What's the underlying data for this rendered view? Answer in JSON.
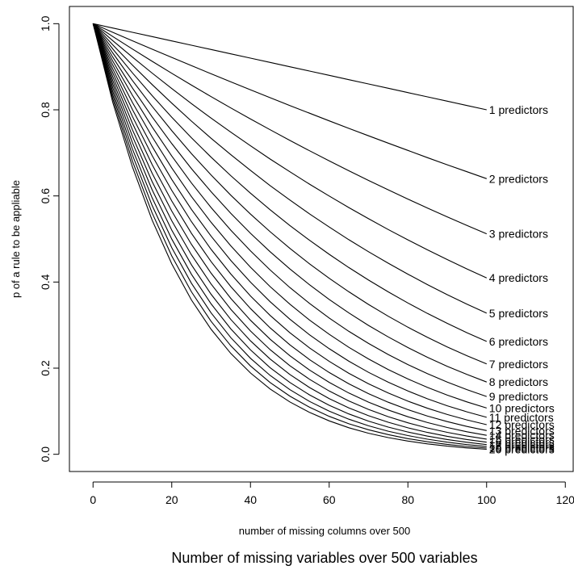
{
  "caption": "Number of missing variables over 500 variables",
  "chart_data": {
    "type": "line",
    "xlabel": "number of missing columns over 500",
    "ylabel": "p of a rule to be appliable",
    "xlim": [
      -6,
      122
    ],
    "ylim": [
      -0.04,
      1.04
    ],
    "xticks": [
      0,
      20,
      40,
      60,
      80,
      100,
      120
    ],
    "yticks": [
      0.0,
      0.2,
      0.4,
      0.6,
      0.8,
      1.0
    ],
    "yticklabels": [
      "0.0",
      "0.2",
      "0.4",
      "0.6",
      "0.8",
      "1.0"
    ],
    "grid": false,
    "legend": "none",
    "x": [
      0,
      5,
      10,
      15,
      20,
      25,
      30,
      35,
      40,
      45,
      50,
      55,
      60,
      65,
      70,
      75,
      80,
      85,
      90,
      95,
      100
    ],
    "series": [
      {
        "name": "1 predictors",
        "values": [
          1.0,
          0.99,
          0.98,
          0.97,
          0.96,
          0.95,
          0.94,
          0.93,
          0.92,
          0.91,
          0.9,
          0.89,
          0.88,
          0.87,
          0.86,
          0.85,
          0.84,
          0.83,
          0.82,
          0.81,
          0.8
        ]
      },
      {
        "name": "2 predictors",
        "values": [
          1.0,
          0.98,
          0.9604,
          0.9409,
          0.9216,
          0.9025,
          0.8836,
          0.8649,
          0.8464,
          0.8281,
          0.81,
          0.7921,
          0.7744,
          0.7569,
          0.7396,
          0.7225,
          0.7056,
          0.6889,
          0.6724,
          0.6561,
          0.64
        ]
      },
      {
        "name": "3 predictors",
        "values": [
          1.0,
          0.9703,
          0.9412,
          0.9127,
          0.8847,
          0.8574,
          0.8306,
          0.8044,
          0.7787,
          0.7536,
          0.729,
          0.705,
          0.6815,
          0.6585,
          0.636,
          0.6141,
          0.5927,
          0.5718,
          0.5514,
          0.5314,
          0.512
        ]
      },
      {
        "name": "4 predictors",
        "values": [
          1.0,
          0.9606,
          0.9224,
          0.8853,
          0.8493,
          0.8145,
          0.7807,
          0.748,
          0.7164,
          0.6857,
          0.6561,
          0.6274,
          0.5997,
          0.5729,
          0.547,
          0.522,
          0.4979,
          0.4746,
          0.4521,
          0.4305,
          0.4096
        ]
      },
      {
        "name": "5 predictors",
        "values": [
          1.0,
          0.951,
          0.9039,
          0.8587,
          0.8154,
          0.7738,
          0.7339,
          0.6957,
          0.6591,
          0.624,
          0.5905,
          0.5584,
          0.5277,
          0.4984,
          0.4704,
          0.4437,
          0.4182,
          0.3939,
          0.3707,
          0.3487,
          0.3277
        ]
      },
      {
        "name": "6 predictors",
        "values": [
          1.0,
          0.9415,
          0.8858,
          0.833,
          0.7828,
          0.7351,
          0.6899,
          0.647,
          0.6064,
          0.5679,
          0.5314,
          0.497,
          0.4644,
          0.4336,
          0.4046,
          0.3771,
          0.3513,
          0.327,
          0.304,
          0.2824,
          0.2621
        ]
      },
      {
        "name": "7 predictors",
        "values": [
          1.0,
          0.9321,
          0.8681,
          0.808,
          0.7514,
          0.6983,
          0.6485,
          0.6017,
          0.5578,
          0.5168,
          0.4783,
          0.4423,
          0.4087,
          0.3773,
          0.348,
          0.3206,
          0.2951,
          0.2714,
          0.2493,
          0.2288,
          0.2097
        ]
      },
      {
        "name": "8 predictors",
        "values": [
          1.0,
          0.9227,
          0.8508,
          0.7837,
          0.7214,
          0.6634,
          0.6096,
          0.5596,
          0.5132,
          0.4703,
          0.4305,
          0.3937,
          0.3596,
          0.3282,
          0.2992,
          0.2725,
          0.2479,
          0.2252,
          0.2044,
          0.1853,
          0.1678
        ]
      },
      {
        "name": "9 predictors",
        "values": [
          1.0,
          0.9135,
          0.8337,
          0.7602,
          0.6925,
          0.6302,
          0.573,
          0.5204,
          0.4722,
          0.428,
          0.3874,
          0.3504,
          0.3165,
          0.2855,
          0.2573,
          0.2316,
          0.2082,
          0.187,
          0.1676,
          0.1501,
          0.1342
        ]
      },
      {
        "name": "10 predictors",
        "values": [
          1.0,
          0.9044,
          0.8171,
          0.7374,
          0.6648,
          0.5987,
          0.5386,
          0.484,
          0.4344,
          0.3894,
          0.3487,
          0.3118,
          0.2785,
          0.2484,
          0.2213,
          0.1969,
          0.1749,
          0.1552,
          0.1374,
          0.1216,
          0.1074
        ]
      },
      {
        "name": "11 predictors",
        "values": [
          1.0,
          0.8953,
          0.8007,
          0.7153,
          0.6382,
          0.5688,
          0.5063,
          0.4501,
          0.3996,
          0.3544,
          0.3138,
          0.2775,
          0.2451,
          0.2161,
          0.1903,
          0.1673,
          0.1469,
          0.1288,
          0.1127,
          0.0985,
          0.0859
        ]
      },
      {
        "name": "12 predictors",
        "values": [
          1.0,
          0.8864,
          0.7847,
          0.6938,
          0.6127,
          0.5404,
          0.4759,
          0.4186,
          0.3677,
          0.3225,
          0.2824,
          0.247,
          0.2157,
          0.188,
          0.1637,
          0.1422,
          0.1234,
          0.1069,
          0.0924,
          0.0798,
          0.0687
        ]
      },
      {
        "name": "13 predictors",
        "values": [
          1.0,
          0.8775,
          0.769,
          0.673,
          0.5882,
          0.5133,
          0.4474,
          0.3893,
          0.3383,
          0.2935,
          0.2542,
          0.2198,
          0.1898,
          0.1636,
          0.1408,
          0.1209,
          0.1037,
          0.0887,
          0.0758,
          0.0646,
          0.055
        ]
      },
      {
        "name": "14 predictors",
        "values": [
          1.0,
          0.8687,
          0.7536,
          0.6528,
          0.5647,
          0.4877,
          0.4205,
          0.362,
          0.3112,
          0.2671,
          0.2288,
          0.1956,
          0.167,
          0.1423,
          0.1211,
          0.1028,
          0.0871,
          0.0736,
          0.0621,
          0.0523,
          0.044
        ]
      },
      {
        "name": "15 predictors",
        "values": [
          1.0,
          0.8601,
          0.7386,
          0.6333,
          0.5421,
          0.4633,
          0.3953,
          0.3367,
          0.2863,
          0.243,
          0.2059,
          0.1741,
          0.147,
          0.1238,
          0.1041,
          0.0874,
          0.0731,
          0.0611,
          0.051,
          0.0424,
          0.0352
        ]
      },
      {
        "name": "16 predictors",
        "values": [
          1.0,
          0.8515,
          0.7238,
          0.6143,
          0.5204,
          0.4401,
          0.3716,
          0.3131,
          0.2634,
          0.2211,
          0.1853,
          0.155,
          0.1293,
          0.1077,
          0.0895,
          0.0743,
          0.0614,
          0.0507,
          0.0418,
          0.0343,
          0.0281
        ]
      },
      {
        "name": "17 predictors",
        "values": [
          1.0,
          0.8429,
          0.7093,
          0.5958,
          0.4996,
          0.4181,
          0.3493,
          0.2912,
          0.2423,
          0.2012,
          0.1668,
          0.1379,
          0.1138,
          0.0937,
          0.077,
          0.0631,
          0.0516,
          0.0421,
          0.0343,
          0.0278,
          0.0225
        ]
      },
      {
        "name": "18 predictors",
        "values": [
          1.0,
          0.8345,
          0.6951,
          0.578,
          0.4796,
          0.3972,
          0.3283,
          0.2708,
          0.2229,
          0.1831,
          0.1501,
          0.1227,
          0.1001,
          0.0815,
          0.0662,
          0.0536,
          0.0434,
          0.035,
          0.0281,
          0.0225,
          0.018
        ]
      },
      {
        "name": "19 predictors",
        "values": [
          1.0,
          0.8262,
          0.6812,
          0.5606,
          0.4604,
          0.3774,
          0.3086,
          0.2519,
          0.2051,
          0.1666,
          0.1351,
          0.1092,
          0.0881,
          0.0709,
          0.0569,
          0.0456,
          0.0364,
          0.029,
          0.023,
          0.0182,
          0.0144
        ]
      },
      {
        "name": "20 predictors",
        "values": [
          1.0,
          0.8179,
          0.6676,
          0.5438,
          0.442,
          0.3585,
          0.2901,
          0.2342,
          0.1887,
          0.1516,
          0.1216,
          0.0972,
          0.0776,
          0.0617,
          0.0489,
          0.0388,
          0.0306,
          0.0241,
          0.0189,
          0.0148,
          0.0115
        ]
      }
    ]
  }
}
